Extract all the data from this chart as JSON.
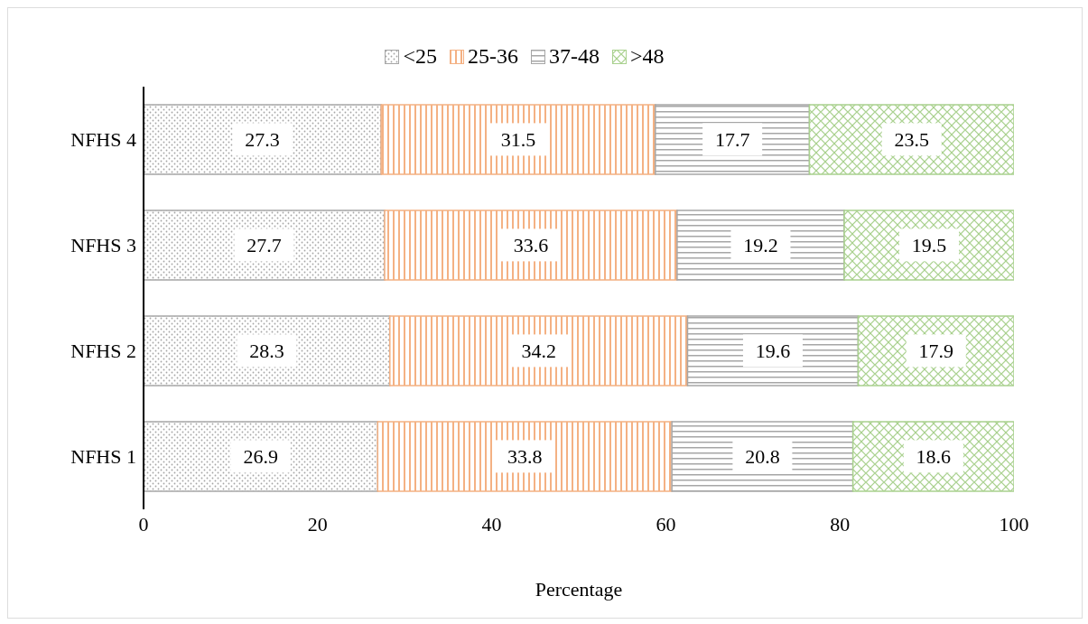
{
  "chart_data": {
    "type": "bar",
    "orientation": "horizontal",
    "stacked": true,
    "xlabel": "Percentage",
    "categories": [
      "NFHS 4",
      "NFHS 3",
      "NFHS 2",
      "NFHS 1"
    ],
    "series": [
      {
        "name": "<25",
        "color": "#a6a6a6",
        "values": [
          27.3,
          27.7,
          28.3,
          26.9
        ]
      },
      {
        "name": "25-36",
        "color": "#f4b183",
        "values": [
          31.5,
          33.6,
          34.2,
          33.8
        ]
      },
      {
        "name": "37-48",
        "color": "#a6a6a6",
        "values": [
          17.7,
          19.2,
          19.6,
          20.8
        ]
      },
      {
        "name": ">48",
        "color": "#a9d18e",
        "values": [
          23.5,
          19.5,
          17.9,
          18.6
        ]
      }
    ],
    "xlim": [
      0,
      100
    ],
    "xticks": [
      0,
      20,
      40,
      60,
      80,
      100
    ],
    "grid": false,
    "legend": "top",
    "data_labels": true
  }
}
